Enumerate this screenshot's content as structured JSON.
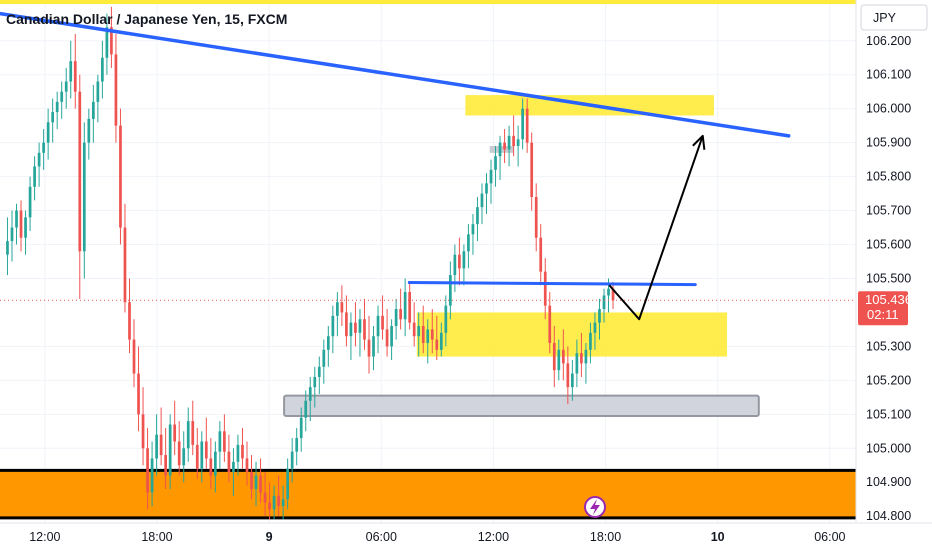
{
  "chart_data": {
    "type": "candlestick",
    "title": "Canadian Dollar / Japanese Yen, 15, FXCM",
    "currency": "JPY",
    "current_price": "105.436",
    "countdown": "02:11",
    "y_ticks": [
      "106.200",
      "106.100",
      "106.000",
      "105.900",
      "105.800",
      "105.700",
      "105.600",
      "105.500",
      "105.300",
      "105.200",
      "105.100",
      "105.000",
      "104.900",
      "104.800"
    ],
    "y_tick_values": [
      106.2,
      106.1,
      106.0,
      105.9,
      105.8,
      105.7,
      105.6,
      105.5,
      105.3,
      105.2,
      105.1,
      105.0,
      104.9,
      104.8
    ],
    "ylim": [
      104.78,
      106.32
    ],
    "x_ticks": [
      "12:00",
      "18:00",
      "9",
      "06:00",
      "12:00",
      "18:00",
      "10",
      "06:00"
    ],
    "x_tick_hours": [
      12,
      18,
      24,
      30,
      36,
      42,
      48,
      54
    ],
    "xlim": [
      9.6,
      55.4
    ],
    "grid": true,
    "ohlc": [
      [
        105.57,
        105.68,
        105.51,
        105.61
      ],
      [
        105.61,
        105.7,
        105.55,
        105.65
      ],
      [
        105.65,
        105.72,
        105.6,
        105.7
      ],
      [
        105.7,
        105.73,
        105.58,
        105.62
      ],
      [
        105.62,
        105.7,
        105.57,
        105.68
      ],
      [
        105.68,
        105.8,
        105.64,
        105.77
      ],
      [
        105.77,
        105.86,
        105.73,
        105.83
      ],
      [
        105.83,
        105.9,
        105.77,
        105.87
      ],
      [
        105.87,
        105.94,
        105.82,
        105.9
      ],
      [
        105.9,
        106.0,
        105.85,
        105.96
      ],
      [
        105.96,
        106.03,
        105.9,
        105.99
      ],
      [
        105.99,
        106.05,
        105.94,
        106.02
      ],
      [
        106.02,
        106.08,
        105.97,
        106.05
      ],
      [
        106.05,
        106.12,
        106.0,
        106.08
      ],
      [
        106.08,
        106.2,
        106.03,
        106.14
      ],
      [
        106.14,
        106.22,
        106.0,
        106.05
      ],
      [
        106.05,
        106.1,
        105.44,
        105.58
      ],
      [
        105.58,
        105.96,
        105.5,
        105.9
      ],
      [
        105.9,
        106.0,
        105.85,
        105.97
      ],
      [
        105.97,
        106.07,
        105.9,
        106.02
      ],
      [
        106.02,
        106.1,
        105.96,
        106.08
      ],
      [
        106.08,
        106.2,
        106.03,
        106.15
      ],
      [
        106.15,
        106.28,
        106.1,
        106.24
      ],
      [
        106.24,
        106.3,
        106.12,
        106.16
      ],
      [
        106.16,
        106.22,
        105.9,
        105.95
      ],
      [
        105.95,
        106.0,
        105.6,
        105.65
      ],
      [
        105.65,
        105.72,
        105.4,
        105.43
      ],
      [
        105.43,
        105.5,
        105.28,
        105.32
      ],
      [
        105.32,
        105.38,
        105.18,
        105.22
      ],
      [
        105.22,
        105.3,
        105.05,
        105.1
      ],
      [
        105.1,
        105.18,
        104.95,
        105.0
      ],
      [
        105.0,
        105.06,
        104.82,
        104.87
      ],
      [
        104.87,
        105.02,
        104.83,
        104.97
      ],
      [
        104.97,
        105.1,
        104.92,
        105.04
      ],
      [
        105.04,
        105.12,
        104.95,
        104.98
      ],
      [
        104.98,
        105.06,
        104.88,
        104.92
      ],
      [
        104.92,
        105.1,
        104.88,
        105.07
      ],
      [
        105.07,
        105.14,
        104.98,
        105.02
      ],
      [
        105.02,
        105.08,
        104.92,
        104.95
      ],
      [
        104.95,
        105.05,
        104.9,
        105.0
      ],
      [
        105.0,
        105.12,
        104.96,
        105.08
      ],
      [
        105.08,
        105.14,
        104.98,
        105.01
      ],
      [
        105.01,
        105.06,
        104.91,
        104.94
      ],
      [
        104.94,
        105.05,
        104.9,
        105.02
      ],
      [
        105.02,
        105.09,
        104.94,
        104.97
      ],
      [
        104.97,
        105.03,
        104.88,
        104.92
      ],
      [
        104.92,
        105.02,
        104.87,
        104.99
      ],
      [
        104.99,
        105.08,
        104.94,
        105.05
      ],
      [
        105.05,
        105.1,
        104.96,
        104.99
      ],
      [
        104.99,
        105.04,
        104.9,
        104.93
      ],
      [
        104.93,
        105.0,
        104.86,
        104.96
      ],
      [
        104.96,
        105.04,
        104.92,
        105.01
      ],
      [
        105.01,
        105.06,
        104.94,
        104.97
      ],
      [
        104.97,
        105.02,
        104.89,
        104.93
      ],
      [
        104.93,
        104.98,
        104.85,
        104.88
      ],
      [
        104.88,
        104.96,
        104.83,
        104.92
      ],
      [
        104.92,
        104.97,
        104.84,
        104.87
      ],
      [
        104.87,
        104.93,
        104.8,
        104.84
      ],
      [
        104.84,
        104.9,
        104.79,
        104.82
      ],
      [
        104.82,
        104.89,
        104.79,
        104.86
      ],
      [
        104.86,
        104.92,
        104.8,
        104.83
      ],
      [
        104.83,
        104.89,
        104.79,
        104.85
      ],
      [
        104.85,
        104.97,
        104.82,
        104.94
      ],
      [
        104.94,
        105.03,
        104.9,
        104.99
      ],
      [
        104.99,
        105.06,
        104.95,
        105.03
      ],
      [
        105.03,
        105.12,
        104.99,
        105.09
      ],
      [
        105.09,
        105.17,
        105.05,
        105.14
      ],
      [
        105.14,
        105.21,
        105.08,
        105.18
      ],
      [
        105.18,
        105.24,
        105.12,
        105.21
      ],
      [
        105.21,
        105.27,
        105.16,
        105.24
      ],
      [
        105.24,
        105.32,
        105.19,
        105.29
      ],
      [
        105.29,
        105.36,
        105.24,
        105.33
      ],
      [
        105.33,
        105.42,
        105.28,
        105.39
      ],
      [
        105.39,
        105.46,
        105.33,
        105.43
      ],
      [
        105.43,
        105.48,
        105.36,
        105.4
      ],
      [
        105.4,
        105.45,
        105.3,
        105.33
      ],
      [
        105.33,
        105.4,
        105.26,
        105.37
      ],
      [
        105.37,
        105.43,
        105.3,
        105.34
      ],
      [
        105.34,
        105.41,
        105.27,
        105.38
      ],
      [
        105.38,
        105.44,
        105.29,
        105.32
      ],
      [
        105.32,
        105.39,
        105.22,
        105.27
      ],
      [
        105.27,
        105.36,
        105.23,
        105.33
      ],
      [
        105.33,
        105.42,
        105.28,
        105.39
      ],
      [
        105.39,
        105.45,
        105.32,
        105.35
      ],
      [
        105.35,
        105.41,
        105.27,
        105.3
      ],
      [
        105.3,
        105.38,
        105.26,
        105.36
      ],
      [
        105.36,
        105.44,
        105.32,
        105.41
      ],
      [
        105.41,
        105.47,
        105.35,
        105.38
      ],
      [
        105.38,
        105.5,
        105.33,
        105.46
      ],
      [
        105.46,
        105.49,
        105.35,
        105.37
      ],
      [
        105.37,
        105.43,
        105.3,
        105.33
      ],
      [
        105.33,
        105.4,
        105.27,
        105.36
      ],
      [
        105.36,
        105.42,
        105.28,
        105.31
      ],
      [
        105.31,
        105.38,
        105.25,
        105.35
      ],
      [
        105.35,
        105.41,
        105.28,
        105.32
      ],
      [
        105.32,
        105.39,
        105.26,
        105.29
      ],
      [
        105.29,
        105.37,
        105.27,
        105.34
      ],
      [
        105.34,
        105.45,
        105.3,
        105.42
      ],
      [
        105.42,
        105.55,
        105.38,
        105.51
      ],
      [
        105.51,
        105.6,
        105.46,
        105.57
      ],
      [
        105.57,
        105.62,
        105.48,
        105.53
      ],
      [
        105.53,
        105.6,
        105.48,
        105.58
      ],
      [
        105.58,
        105.66,
        105.53,
        105.63
      ],
      [
        105.63,
        105.69,
        105.57,
        105.66
      ],
      [
        105.66,
        105.74,
        105.61,
        105.71
      ],
      [
        105.71,
        105.78,
        105.66,
        105.75
      ],
      [
        105.75,
        105.81,
        105.69,
        105.78
      ],
      [
        105.78,
        105.85,
        105.72,
        105.82
      ],
      [
        105.82,
        105.89,
        105.77,
        105.86
      ],
      [
        105.86,
        105.92,
        105.79,
        105.9
      ],
      [
        105.9,
        105.94,
        105.84,
        105.88
      ],
      [
        105.88,
        105.95,
        105.83,
        105.92
      ],
      [
        105.92,
        105.98,
        105.86,
        105.89
      ],
      [
        105.89,
        105.95,
        105.83,
        105.91
      ],
      [
        105.91,
        106.03,
        105.88,
        106.0
      ],
      [
        106.0,
        106.03,
        105.87,
        105.9
      ],
      [
        105.9,
        105.93,
        105.7,
        105.74
      ],
      [
        105.74,
        105.78,
        105.58,
        105.62
      ],
      [
        105.62,
        105.66,
        105.48,
        105.52
      ],
      [
        105.52,
        105.56,
        105.38,
        105.42
      ],
      [
        105.42,
        105.46,
        105.28,
        105.31
      ],
      [
        105.31,
        105.36,
        105.18,
        105.23
      ],
      [
        105.23,
        105.32,
        105.2,
        105.29
      ],
      [
        105.29,
        105.35,
        105.2,
        105.25
      ],
      [
        105.25,
        105.3,
        105.13,
        105.18
      ],
      [
        105.18,
        105.26,
        105.14,
        105.22
      ],
      [
        105.22,
        105.32,
        105.18,
        105.28
      ],
      [
        105.28,
        105.34,
        105.21,
        105.25
      ],
      [
        105.25,
        105.31,
        105.19,
        105.29
      ],
      [
        105.29,
        105.37,
        105.25,
        105.34
      ],
      [
        105.34,
        105.4,
        105.29,
        105.37
      ],
      [
        105.37,
        105.44,
        105.32,
        105.41
      ],
      [
        105.41,
        105.47,
        105.37,
        105.45
      ],
      [
        105.45,
        105.5,
        105.4,
        105.47
      ],
      [
        105.47,
        105.49,
        105.41,
        105.436
      ]
    ],
    "series_colors": {
      "up": "#26a69a",
      "down": "#ef5350"
    }
  },
  "annotations": {
    "blue_trendline": {
      "from": [
        9.6,
        106.28
      ],
      "to": [
        51.8,
        105.92
      ],
      "color": "#2962ff"
    },
    "blue_resistance": {
      "from": [
        31.5,
        105.488
      ],
      "to": [
        46.8,
        105.482
      ],
      "color": "#2962ff"
    },
    "yellow_zone_top": {
      "x": [
        34.5,
        47.8
      ],
      "y": [
        105.98,
        106.04
      ],
      "color": "#ffeb3b"
    },
    "yellow_zone_mid": {
      "x": [
        31.9,
        48.5
      ],
      "y": [
        105.27,
        105.4
      ],
      "color": "#ffeb3b"
    },
    "grey_small": {
      "x": [
        35.8,
        37.1
      ],
      "y": [
        105.87,
        105.89
      ],
      "color": "#c9cbd2"
    },
    "grey_support": {
      "x": [
        24.8,
        50.2
      ],
      "y": [
        105.095,
        105.155
      ],
      "color": "#d1d4dc"
    },
    "orange_band": {
      "y": [
        104.795,
        104.935
      ],
      "color": "#ff9800"
    },
    "projection_arrow": [
      [
        42.2,
        105.48
      ],
      [
        43.8,
        105.38
      ],
      [
        47.2,
        105.92
      ]
    ],
    "yellow_top_line_color": "#ffeb3b",
    "price_line_color": "#ef5350"
  }
}
